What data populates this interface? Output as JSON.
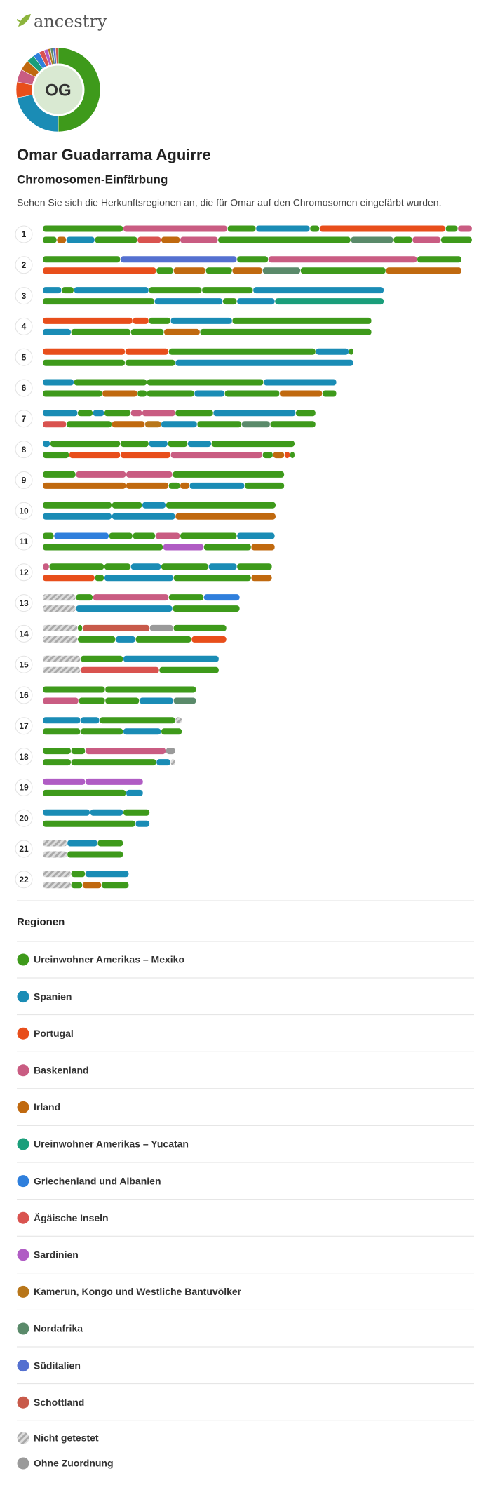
{
  "header": {
    "logo": "ancestry"
  },
  "profile": {
    "initials": "OG",
    "name": "Omar Guadarrama Aguirre",
    "section_title": "Chromosomen-Einfärbung",
    "description": "Sehen Sie sich die Herkunftsregionen an, die für Omar auf den Chromosomen eingefärbt wurden."
  },
  "regions_title": "Regionen",
  "regions": [
    {
      "name": "Ureinwohner Amerikas – Mexiko",
      "color": "#3e9a1b"
    },
    {
      "name": "Spanien",
      "color": "#1a8cb5"
    },
    {
      "name": "Portugal",
      "color": "#e84e1b"
    },
    {
      "name": "Baskenland",
      "color": "#c95c82"
    },
    {
      "name": "Irland",
      "color": "#c0690f"
    },
    {
      "name": "Ureinwohner Amerikas – Yucatan",
      "color": "#1a9e7a"
    },
    {
      "name": "Griechenland und Albanien",
      "color": "#2f7fdc"
    },
    {
      "name": "Ägäische Inseln",
      "color": "#d9534f"
    },
    {
      "name": "Sardinien",
      "color": "#b05cc4"
    },
    {
      "name": "Kamerun, Kongo und Westliche Bantuvölker",
      "color": "#b8761a"
    },
    {
      "name": "Nordafrika",
      "color": "#5a8a6a"
    },
    {
      "name": "Süditalien",
      "color": "#5470d0"
    },
    {
      "name": "Schottland",
      "color": "#c85a4a"
    },
    {
      "name": "Nicht getestet",
      "color": "#bbbbbb",
      "pattern": "hatched"
    },
    {
      "name": "Ohne Zuordnung",
      "color": "#9a9a9a"
    }
  ],
  "donut": {
    "values": [
      50,
      22,
      6,
      5,
      4,
      3,
      2.5,
      2,
      1.5,
      1,
      1,
      1,
      1
    ]
  },
  "chromosomes": [
    {
      "label": "1",
      "strands": [
        [
          [
            0,
            85,
            0
          ],
          [
            85,
            195,
            3
          ],
          [
            195,
            225,
            0
          ],
          [
            225,
            282,
            1
          ],
          [
            282,
            292,
            0
          ],
          [
            292,
            425,
            2
          ],
          [
            425,
            438,
            0
          ],
          [
            438,
            453,
            3
          ]
        ],
        [
          [
            0,
            15,
            0
          ],
          [
            15,
            25,
            4
          ],
          [
            25,
            55,
            1
          ],
          [
            55,
            100,
            0
          ],
          [
            100,
            125,
            7
          ],
          [
            125,
            145,
            4
          ],
          [
            145,
            185,
            3
          ],
          [
            185,
            325,
            0
          ],
          [
            325,
            370,
            10
          ],
          [
            370,
            390,
            0
          ],
          [
            390,
            420,
            3
          ],
          [
            420,
            453,
            0
          ]
        ]
      ]
    },
    {
      "label": "2",
      "strands": [
        [
          [
            0,
            82,
            0
          ],
          [
            82,
            205,
            11
          ],
          [
            205,
            238,
            0
          ],
          [
            238,
            395,
            3
          ],
          [
            395,
            442,
            0
          ]
        ],
        [
          [
            0,
            120,
            2
          ],
          [
            120,
            138,
            0
          ],
          [
            138,
            172,
            4
          ],
          [
            172,
            200,
            0
          ],
          [
            200,
            232,
            4
          ],
          [
            232,
            272,
            10
          ],
          [
            272,
            362,
            0
          ],
          [
            362,
            442,
            4
          ]
        ]
      ]
    },
    {
      "label": "3",
      "strands": [
        [
          [
            0,
            20,
            1
          ],
          [
            20,
            33,
            0
          ],
          [
            33,
            112,
            1
          ],
          [
            112,
            168,
            0
          ],
          [
            168,
            222,
            0
          ],
          [
            222,
            360,
            1
          ]
        ],
        [
          [
            0,
            118,
            0
          ],
          [
            118,
            190,
            1
          ],
          [
            190,
            205,
            0
          ],
          [
            205,
            245,
            1
          ],
          [
            245,
            360,
            5
          ]
        ]
      ]
    },
    {
      "label": "4",
      "strands": [
        [
          [
            0,
            95,
            2
          ],
          [
            95,
            112,
            2
          ],
          [
            112,
            135,
            0
          ],
          [
            135,
            200,
            1
          ],
          [
            200,
            347,
            0
          ]
        ],
        [
          [
            0,
            30,
            1
          ],
          [
            30,
            93,
            0
          ],
          [
            93,
            128,
            0
          ],
          [
            128,
            166,
            4
          ],
          [
            166,
            347,
            0
          ]
        ]
      ]
    },
    {
      "label": "5",
      "strands": [
        [
          [
            0,
            87,
            2
          ],
          [
            87,
            133,
            2
          ],
          [
            133,
            288,
            0
          ],
          [
            288,
            323,
            1
          ],
          [
            323,
            328,
            0
          ]
        ],
        [
          [
            0,
            87,
            0
          ],
          [
            87,
            140,
            0
          ],
          [
            140,
            328,
            1
          ]
        ]
      ]
    },
    {
      "label": "6",
      "strands": [
        [
          [
            0,
            33,
            1
          ],
          [
            33,
            110,
            0
          ],
          [
            110,
            233,
            0
          ],
          [
            233,
            310,
            1
          ]
        ],
        [
          [
            0,
            63,
            0
          ],
          [
            63,
            100,
            4
          ],
          [
            100,
            110,
            0
          ],
          [
            110,
            160,
            0
          ],
          [
            160,
            192,
            1
          ],
          [
            192,
            250,
            0
          ],
          [
            250,
            295,
            4
          ],
          [
            295,
            310,
            0
          ]
        ]
      ]
    },
    {
      "label": "7",
      "strands": [
        [
          [
            0,
            37,
            1
          ],
          [
            37,
            53,
            0
          ],
          [
            53,
            65,
            1
          ],
          [
            65,
            93,
            0
          ],
          [
            93,
            105,
            3
          ],
          [
            105,
            140,
            3
          ],
          [
            140,
            180,
            0
          ],
          [
            180,
            267,
            1
          ],
          [
            267,
            288,
            0
          ]
        ],
        [
          [
            0,
            25,
            7
          ],
          [
            25,
            73,
            0
          ],
          [
            73,
            108,
            4
          ],
          [
            108,
            125,
            9
          ],
          [
            125,
            163,
            1
          ],
          [
            163,
            210,
            0
          ],
          [
            210,
            240,
            10
          ],
          [
            240,
            288,
            0
          ]
        ]
      ]
    },
    {
      "label": "8",
      "strands": [
        [
          [
            0,
            8,
            1
          ],
          [
            8,
            82,
            0
          ],
          [
            82,
            112,
            0
          ],
          [
            112,
            132,
            1
          ],
          [
            132,
            153,
            0
          ],
          [
            153,
            178,
            1
          ],
          [
            178,
            266,
            0
          ]
        ],
        [
          [
            0,
            28,
            0
          ],
          [
            28,
            82,
            2
          ],
          [
            82,
            135,
            2
          ],
          [
            135,
            232,
            3
          ],
          [
            232,
            243,
            0
          ],
          [
            243,
            255,
            4
          ],
          [
            255,
            261,
            2
          ],
          [
            261,
            266,
            0
          ]
        ]
      ]
    },
    {
      "label": "9",
      "strands": [
        [
          [
            0,
            35,
            0
          ],
          [
            35,
            88,
            3
          ],
          [
            88,
            137,
            3
          ],
          [
            137,
            255,
            0
          ]
        ],
        [
          [
            0,
            88,
            4
          ],
          [
            88,
            133,
            4
          ],
          [
            133,
            145,
            0
          ],
          [
            145,
            155,
            4
          ],
          [
            155,
            213,
            1
          ],
          [
            213,
            255,
            0
          ]
        ]
      ]
    },
    {
      "label": "10",
      "strands": [
        [
          [
            0,
            73,
            0
          ],
          [
            73,
            105,
            0
          ],
          [
            105,
            130,
            1
          ],
          [
            130,
            246,
            0
          ]
        ],
        [
          [
            0,
            73,
            1
          ],
          [
            73,
            140,
            1
          ],
          [
            140,
            246,
            4
          ]
        ]
      ]
    },
    {
      "label": "11",
      "strands": [
        [
          [
            0,
            12,
            0
          ],
          [
            12,
            70,
            6
          ],
          [
            70,
            95,
            0
          ],
          [
            95,
            119,
            0
          ],
          [
            119,
            145,
            3
          ],
          [
            145,
            205,
            0
          ],
          [
            205,
            245,
            1
          ]
        ],
        [
          [
            0,
            127,
            0
          ],
          [
            127,
            170,
            8
          ],
          [
            170,
            220,
            0
          ],
          [
            220,
            245,
            4
          ]
        ]
      ]
    },
    {
      "label": "12",
      "strands": [
        [
          [
            0,
            7,
            3
          ],
          [
            7,
            65,
            0
          ],
          [
            65,
            93,
            0
          ],
          [
            93,
            125,
            1
          ],
          [
            125,
            175,
            0
          ],
          [
            175,
            205,
            1
          ],
          [
            205,
            242,
            0
          ]
        ],
        [
          [
            0,
            55,
            2
          ],
          [
            55,
            65,
            0
          ],
          [
            65,
            138,
            1
          ],
          [
            138,
            220,
            0
          ],
          [
            220,
            242,
            4
          ]
        ]
      ]
    },
    {
      "label": "13",
      "strands": [
        [
          [
            0,
            35,
            13
          ],
          [
            35,
            53,
            0
          ],
          [
            53,
            133,
            3
          ],
          [
            133,
            170,
            0
          ],
          [
            170,
            208,
            6
          ]
        ],
        [
          [
            0,
            35,
            13
          ],
          [
            35,
            137,
            1
          ],
          [
            137,
            208,
            0
          ]
        ]
      ]
    },
    {
      "label": "14",
      "strands": [
        [
          [
            0,
            37,
            13
          ],
          [
            37,
            42,
            0
          ],
          [
            42,
            113,
            12
          ],
          [
            113,
            138,
            14
          ],
          [
            138,
            194,
            0
          ]
        ],
        [
          [
            0,
            37,
            13
          ],
          [
            37,
            77,
            0
          ],
          [
            77,
            98,
            1
          ],
          [
            98,
            157,
            0
          ],
          [
            157,
            194,
            2
          ]
        ]
      ]
    },
    {
      "label": "15",
      "strands": [
        [
          [
            0,
            40,
            13
          ],
          [
            40,
            85,
            0
          ],
          [
            85,
            186,
            1
          ]
        ],
        [
          [
            0,
            40,
            13
          ],
          [
            40,
            123,
            7
          ],
          [
            123,
            186,
            0
          ]
        ]
      ]
    },
    {
      "label": "16",
      "strands": [
        [
          [
            0,
            66,
            0
          ],
          [
            66,
            162,
            0
          ]
        ],
        [
          [
            0,
            38,
            3
          ],
          [
            38,
            66,
            0
          ],
          [
            66,
            102,
            0
          ],
          [
            102,
            138,
            1
          ],
          [
            138,
            162,
            10
          ]
        ]
      ]
    },
    {
      "label": "17",
      "strands": [
        [
          [
            0,
            40,
            1
          ],
          [
            40,
            60,
            1
          ],
          [
            60,
            140,
            0
          ],
          [
            140,
            147,
            13
          ]
        ],
        [
          [
            0,
            40,
            0
          ],
          [
            40,
            85,
            0
          ],
          [
            85,
            125,
            1
          ],
          [
            125,
            147,
            0
          ]
        ]
      ]
    },
    {
      "label": "18",
      "strands": [
        [
          [
            0,
            30,
            0
          ],
          [
            30,
            45,
            0
          ],
          [
            45,
            130,
            3
          ],
          [
            130,
            140,
            14
          ]
        ],
        [
          [
            0,
            30,
            0
          ],
          [
            30,
            120,
            0
          ],
          [
            120,
            135,
            1
          ],
          [
            135,
            140,
            13
          ]
        ]
      ]
    },
    {
      "label": "19",
      "strands": [
        [
          [
            0,
            45,
            8
          ],
          [
            45,
            106,
            8
          ]
        ],
        [
          [
            0,
            88,
            0
          ],
          [
            88,
            106,
            1
          ]
        ]
      ]
    },
    {
      "label": "20",
      "strands": [
        [
          [
            0,
            50,
            1
          ],
          [
            50,
            85,
            1
          ],
          [
            85,
            113,
            0
          ]
        ],
        [
          [
            0,
            98,
            0
          ],
          [
            98,
            113,
            1
          ]
        ]
      ]
    },
    {
      "label": "21",
      "strands": [
        [
          [
            0,
            26,
            13
          ],
          [
            26,
            58,
            1
          ],
          [
            58,
            85,
            0
          ]
        ],
        [
          [
            0,
            26,
            13
          ],
          [
            26,
            85,
            0
          ]
        ]
      ]
    },
    {
      "label": "22",
      "strands": [
        [
          [
            0,
            30,
            13
          ],
          [
            30,
            45,
            0
          ],
          [
            45,
            91,
            1
          ]
        ],
        [
          [
            0,
            30,
            13
          ],
          [
            30,
            42,
            0
          ],
          [
            42,
            62,
            4
          ],
          [
            62,
            91,
            0
          ]
        ]
      ]
    }
  ]
}
